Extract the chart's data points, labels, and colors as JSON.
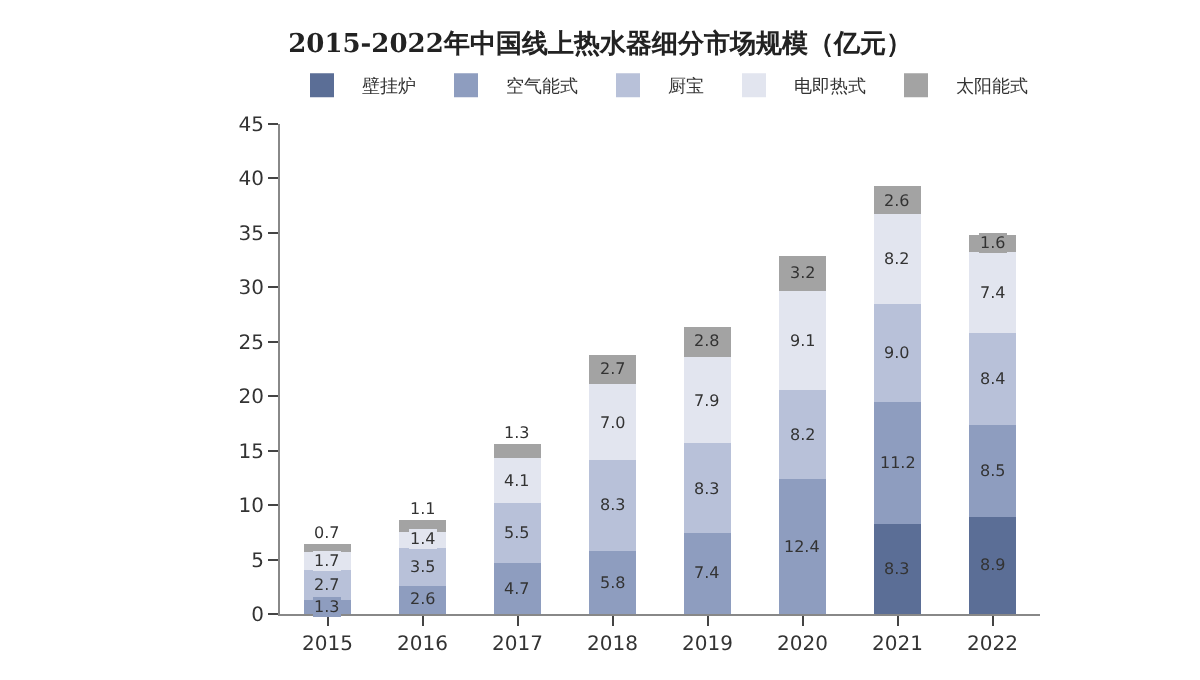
{
  "chart_data": {
    "type": "bar",
    "stacked": true,
    "title": "2015-2022年中国线上热水器细分市场规模（亿元）",
    "categories": [
      "2015",
      "2016",
      "2017",
      "2018",
      "2019",
      "2020",
      "2021",
      "2022"
    ],
    "series": [
      {
        "name": "壁挂炉",
        "color": "#5b6e96",
        "values": [
          null,
          null,
          null,
          null,
          null,
          null,
          8.3,
          8.9
        ],
        "value_labels": [
          null,
          null,
          null,
          null,
          null,
          null,
          "8.3",
          "8.9"
        ]
      },
      {
        "name": "空气能式",
        "color": "#8e9dbf",
        "values": [
          1.3,
          2.6,
          4.7,
          5.8,
          7.4,
          12.4,
          11.2,
          8.5
        ],
        "value_labels": [
          "1.3",
          "2.6",
          "4.7",
          "5.8",
          "7.4",
          "12.4",
          "11.2",
          "8.5"
        ]
      },
      {
        "name": "厨宝",
        "color": "#b8c1d9",
        "values": [
          2.7,
          3.5,
          5.5,
          8.3,
          8.3,
          8.2,
          9.0,
          8.4
        ],
        "value_labels": [
          "2.7",
          "3.5",
          "5.5",
          "8.3",
          "8.3",
          "8.2",
          "9.0",
          "8.4"
        ]
      },
      {
        "name": "电即热式",
        "color": "#e2e5ef",
        "values": [
          1.7,
          1.4,
          4.1,
          7.0,
          7.9,
          9.1,
          8.2,
          7.4
        ],
        "value_labels": [
          "1.7",
          "1.4",
          "4.1",
          "7.0",
          "7.9",
          "9.1",
          "8.2",
          "7.4"
        ]
      },
      {
        "name": "太阳能式",
        "color": "#a3a3a3",
        "values": [
          0.7,
          1.1,
          1.3,
          2.7,
          2.8,
          3.2,
          2.6,
          1.6
        ],
        "value_labels": [
          "0.7",
          "1.1",
          "1.3",
          "2.7",
          "2.8",
          "3.2",
          "2.6",
          "1.6"
        ]
      }
    ],
    "ylim": [
      0,
      45
    ],
    "yticks": [
      0,
      5,
      10,
      15,
      20,
      25,
      30,
      35,
      40,
      45
    ],
    "grid": false,
    "legend": "top"
  }
}
